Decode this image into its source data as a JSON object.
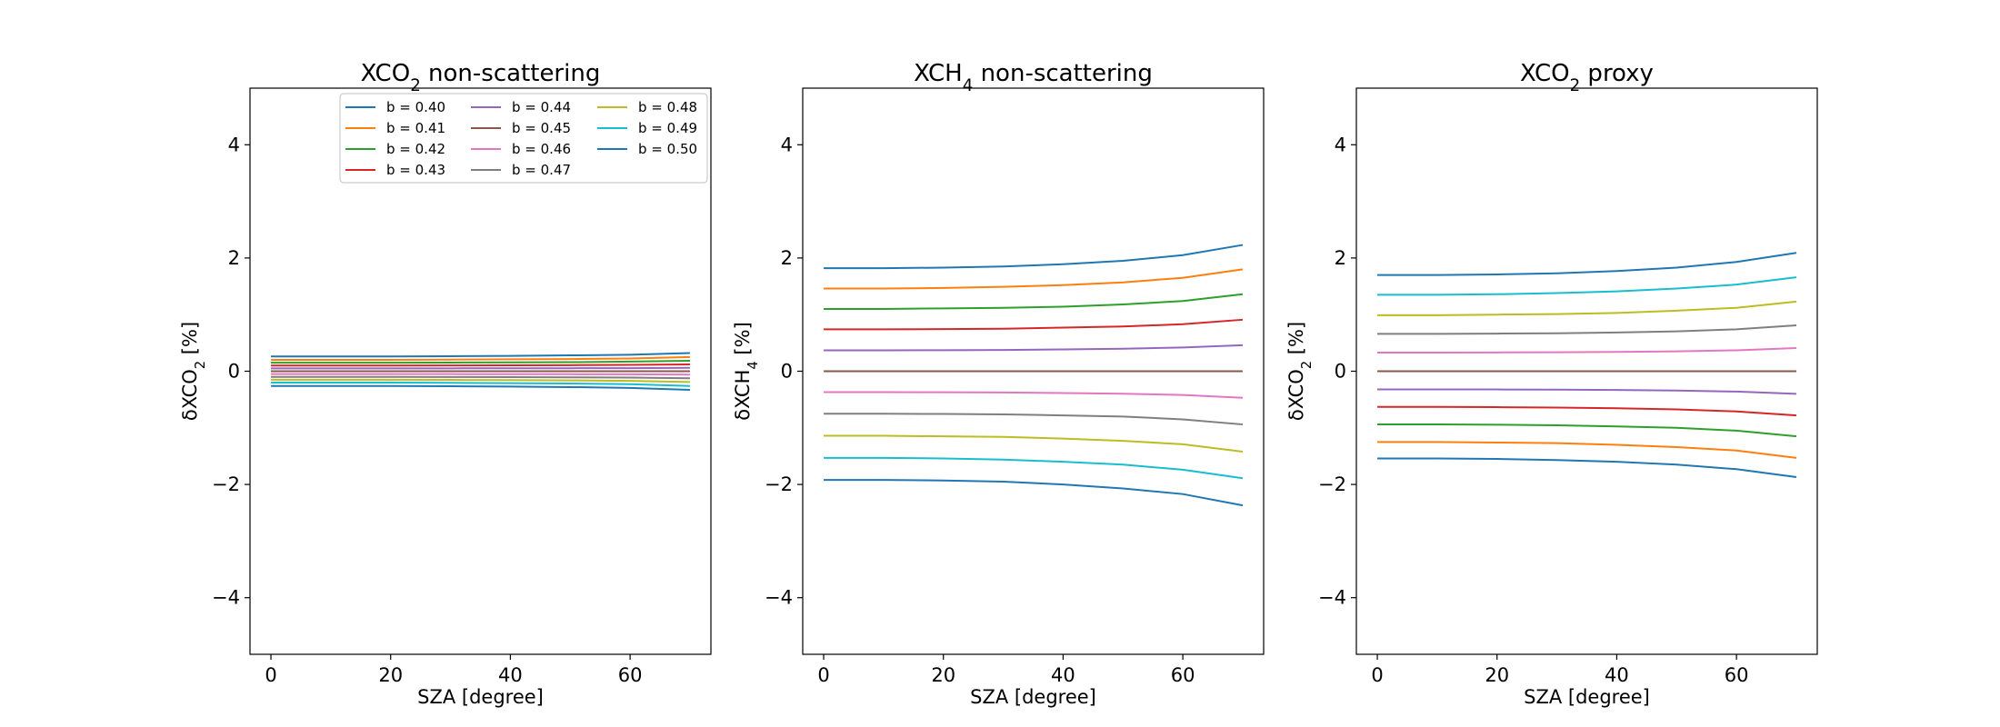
{
  "chart_data": [
    {
      "type": "line",
      "title": [
        "XCO",
        "2",
        " non-scattering"
      ],
      "xlabel": "SZA [degree]",
      "ylabel": [
        "δXCO",
        "2",
        " [%]"
      ],
      "xlim": [
        -3.5,
        73.5
      ],
      "ylim": [
        -5,
        5
      ],
      "xticks": [
        0,
        20,
        40,
        60
      ],
      "yticks": [
        -4,
        -2,
        0,
        2,
        4
      ],
      "ytick_labels": [
        "−4",
        "−2",
        "0",
        "2",
        "4"
      ],
      "grid": false,
      "legend": "top-right",
      "x": [
        0,
        10,
        20,
        30,
        40,
        50,
        60,
        70
      ],
      "series": [
        {
          "name": "b = 0.40",
          "color": "#1f77b4",
          "values": [
            0.26,
            0.26,
            0.26,
            0.265,
            0.27,
            0.28,
            0.29,
            0.32
          ]
        },
        {
          "name": "b = 0.41",
          "color": "#ff7f0e",
          "values": [
            0.2,
            0.2,
            0.2,
            0.205,
            0.21,
            0.215,
            0.225,
            0.25
          ]
        },
        {
          "name": "b = 0.42",
          "color": "#2ca02c",
          "values": [
            0.15,
            0.15,
            0.15,
            0.153,
            0.156,
            0.16,
            0.17,
            0.185
          ]
        },
        {
          "name": "b = 0.43",
          "color": "#d62728",
          "values": [
            0.1,
            0.1,
            0.1,
            0.102,
            0.104,
            0.107,
            0.112,
            0.12
          ]
        },
        {
          "name": "b = 0.44",
          "color": "#9467bd",
          "values": [
            0.05,
            0.05,
            0.05,
            0.051,
            0.052,
            0.053,
            0.055,
            0.06
          ]
        },
        {
          "name": "b = 0.45",
          "color": "#8c564b",
          "values": [
            0,
            0,
            0,
            0,
            0,
            0,
            0,
            0
          ]
        },
        {
          "name": "b = 0.46",
          "color": "#e377c2",
          "values": [
            -0.05,
            -0.05,
            -0.05,
            -0.051,
            -0.052,
            -0.053,
            -0.055,
            -0.06
          ]
        },
        {
          "name": "b = 0.47",
          "color": "#7f7f7f",
          "values": [
            -0.1,
            -0.1,
            -0.1,
            -0.102,
            -0.105,
            -0.108,
            -0.113,
            -0.125
          ]
        },
        {
          "name": "b = 0.48",
          "color": "#bcbd22",
          "values": [
            -0.15,
            -0.15,
            -0.15,
            -0.153,
            -0.157,
            -0.162,
            -0.17,
            -0.19
          ]
        },
        {
          "name": "b = 0.49",
          "color": "#17becf",
          "values": [
            -0.2,
            -0.2,
            -0.2,
            -0.205,
            -0.21,
            -0.217,
            -0.228,
            -0.26
          ]
        },
        {
          "name": "b = 0.50",
          "color": "#1f77b4",
          "values": [
            -0.26,
            -0.26,
            -0.26,
            -0.265,
            -0.27,
            -0.28,
            -0.295,
            -0.33
          ]
        }
      ]
    },
    {
      "type": "line",
      "title": [
        "XCH",
        "4",
        " non-scattering"
      ],
      "xlabel": "SZA [degree]",
      "ylabel": [
        "δXCH",
        "4",
        " [%]"
      ],
      "xlim": [
        -3.5,
        73.5
      ],
      "ylim": [
        -5,
        5
      ],
      "xticks": [
        0,
        20,
        40,
        60
      ],
      "yticks": [
        -4,
        -2,
        0,
        2,
        4
      ],
      "ytick_labels": [
        "−4",
        "−2",
        "0",
        "2",
        "4"
      ],
      "grid": false,
      "x": [
        0,
        10,
        20,
        30,
        40,
        50,
        60,
        70
      ],
      "series": [
        {
          "color": "#1f77b4",
          "values": [
            1.82,
            1.82,
            1.83,
            1.85,
            1.89,
            1.95,
            2.05,
            2.23
          ]
        },
        {
          "color": "#ff7f0e",
          "values": [
            1.46,
            1.46,
            1.47,
            1.49,
            1.52,
            1.57,
            1.65,
            1.8
          ]
        },
        {
          "color": "#2ca02c",
          "values": [
            1.1,
            1.1,
            1.11,
            1.12,
            1.14,
            1.18,
            1.24,
            1.36
          ]
        },
        {
          "color": "#d62728",
          "values": [
            0.74,
            0.74,
            0.745,
            0.75,
            0.77,
            0.79,
            0.83,
            0.91
          ]
        },
        {
          "color": "#9467bd",
          "values": [
            0.37,
            0.37,
            0.372,
            0.376,
            0.385,
            0.397,
            0.42,
            0.46
          ]
        },
        {
          "color": "#8c564b",
          "values": [
            0,
            0,
            0,
            0,
            0,
            0,
            0,
            0
          ]
        },
        {
          "color": "#e377c2",
          "values": [
            -0.37,
            -0.37,
            -0.372,
            -0.376,
            -0.385,
            -0.397,
            -0.42,
            -0.47
          ]
        },
        {
          "color": "#7f7f7f",
          "values": [
            -0.75,
            -0.75,
            -0.755,
            -0.762,
            -0.78,
            -0.8,
            -0.85,
            -0.94
          ]
        },
        {
          "color": "#bcbd22",
          "values": [
            -1.14,
            -1.14,
            -1.15,
            -1.16,
            -1.19,
            -1.23,
            -1.29,
            -1.42
          ]
        },
        {
          "color": "#17becf",
          "values": [
            -1.53,
            -1.53,
            -1.54,
            -1.56,
            -1.6,
            -1.65,
            -1.74,
            -1.89
          ]
        },
        {
          "color": "#1f77b4",
          "values": [
            -1.92,
            -1.92,
            -1.93,
            -1.95,
            -2.0,
            -2.07,
            -2.17,
            -2.37
          ]
        }
      ]
    },
    {
      "type": "line",
      "title": [
        "XCO",
        "2",
        " proxy"
      ],
      "xlabel": "SZA [degree]",
      "ylabel": [
        "δXCO",
        "2",
        " [%]"
      ],
      "xlim": [
        -3.5,
        73.5
      ],
      "ylim": [
        -5,
        5
      ],
      "xticks": [
        0,
        20,
        40,
        60
      ],
      "yticks": [
        -4,
        -2,
        0,
        2,
        4
      ],
      "ytick_labels": [
        "−4",
        "−2",
        "0",
        "2",
        "4"
      ],
      "grid": false,
      "x": [
        0,
        10,
        20,
        30,
        40,
        50,
        60,
        70
      ],
      "series": [
        {
          "color": "#1f77b4",
          "values": [
            1.7,
            1.7,
            1.71,
            1.73,
            1.77,
            1.83,
            1.93,
            2.09
          ]
        },
        {
          "color": "#17becf",
          "values": [
            1.35,
            1.35,
            1.36,
            1.38,
            1.41,
            1.46,
            1.53,
            1.66
          ]
        },
        {
          "color": "#bcbd22",
          "values": [
            0.99,
            0.99,
            1.0,
            1.01,
            1.03,
            1.07,
            1.12,
            1.23
          ]
        },
        {
          "color": "#7f7f7f",
          "values": [
            0.66,
            0.66,
            0.665,
            0.67,
            0.685,
            0.705,
            0.74,
            0.81
          ]
        },
        {
          "color": "#e377c2",
          "values": [
            0.33,
            0.33,
            0.332,
            0.335,
            0.342,
            0.352,
            0.37,
            0.41
          ]
        },
        {
          "color": "#8c564b",
          "values": [
            0,
            0,
            0,
            0,
            0,
            0,
            0,
            0
          ]
        },
        {
          "color": "#9467bd",
          "values": [
            -0.32,
            -0.32,
            -0.322,
            -0.325,
            -0.332,
            -0.342,
            -0.36,
            -0.4
          ]
        },
        {
          "color": "#d62728",
          "values": [
            -0.63,
            -0.63,
            -0.635,
            -0.642,
            -0.655,
            -0.675,
            -0.71,
            -0.78
          ]
        },
        {
          "color": "#2ca02c",
          "values": [
            -0.94,
            -0.94,
            -0.945,
            -0.955,
            -0.975,
            -1.0,
            -1.05,
            -1.15
          ]
        },
        {
          "color": "#ff7f0e",
          "values": [
            -1.25,
            -1.25,
            -1.26,
            -1.27,
            -1.3,
            -1.34,
            -1.4,
            -1.53
          ]
        },
        {
          "color": "#1f77b4",
          "values": [
            -1.54,
            -1.54,
            -1.55,
            -1.57,
            -1.6,
            -1.65,
            -1.73,
            -1.87
          ]
        }
      ]
    }
  ]
}
